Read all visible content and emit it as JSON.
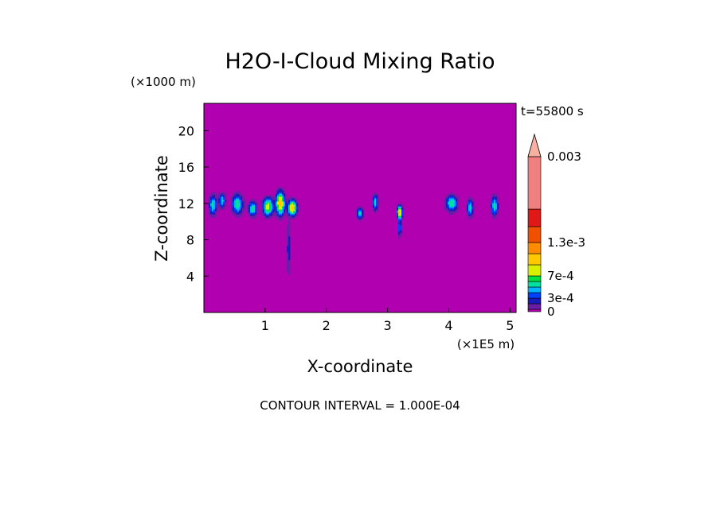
{
  "chart_data": {
    "type": "heatmap",
    "title": "H2O-I-Cloud Mixing Ratio",
    "xlabel": "X-coordinate",
    "ylabel": "Z-coordinate",
    "x_units": "(×1E5 m)",
    "y_units": "(×1000 m)",
    "time_label": "t=55800 s",
    "footnote": "CONTOUR INTERVAL = 1.000E-04",
    "xlim": [
      0,
      5.1
    ],
    "ylim": [
      0,
      23
    ],
    "x_ticks": [
      1,
      2,
      3,
      4,
      5
    ],
    "y_ticks": [
      4,
      8,
      12,
      16,
      20
    ],
    "background_color": "#b000b0",
    "colorbar": {
      "min": 0,
      "max": 0.003,
      "labels": [
        {
          "value": 0,
          "text": "0"
        },
        {
          "value": 0.0003,
          "text": "3e-4"
        },
        {
          "value": 0.0007,
          "text": "7e-4"
        },
        {
          "value": 0.0013,
          "text": "1.3e-3"
        },
        {
          "value": 0.003,
          "text": "0.003"
        }
      ],
      "levels": [
        {
          "from": 0.0,
          "to": 0.0001,
          "color": "#b000b0"
        },
        {
          "from": 0.0001,
          "to": 0.0002,
          "color": "#6a1ea8"
        },
        {
          "from": 0.0002,
          "to": 0.0003,
          "color": "#1a1ab8"
        },
        {
          "from": 0.0003,
          "to": 0.0004,
          "color": "#0040ff"
        },
        {
          "from": 0.0004,
          "to": 0.0005,
          "color": "#00b4ff"
        },
        {
          "from": 0.0005,
          "to": 0.0006,
          "color": "#00e0a0"
        },
        {
          "from": 0.0006,
          "to": 0.0007,
          "color": "#00e040"
        },
        {
          "from": 0.0007,
          "to": 0.0009,
          "color": "#d8f000"
        },
        {
          "from": 0.0009,
          "to": 0.0011,
          "color": "#ffc800"
        },
        {
          "from": 0.0011,
          "to": 0.0013,
          "color": "#ff8c00"
        },
        {
          "from": 0.0013,
          "to": 0.0016,
          "color": "#f05000"
        },
        {
          "from": 0.0016,
          "to": 0.002,
          "color": "#e01818"
        },
        {
          "from": 0.002,
          "to": 0.003,
          "color": "#f08080"
        },
        {
          "from": 0.003,
          "to": 0.0035,
          "color": "#f8b0a0"
        }
      ]
    },
    "cloud_features": [
      {
        "x": 0.15,
        "z": 11.8,
        "wx": 0.09,
        "wz": 1.6,
        "peak": 0.00055
      },
      {
        "x": 0.3,
        "z": 12.3,
        "wx": 0.08,
        "wz": 1.2,
        "peak": 0.0005
      },
      {
        "x": 0.55,
        "z": 11.9,
        "wx": 0.13,
        "wz": 1.6,
        "peak": 0.0006
      },
      {
        "x": 0.8,
        "z": 11.4,
        "wx": 0.1,
        "wz": 1.2,
        "peak": 0.0006
      },
      {
        "x": 1.05,
        "z": 11.6,
        "wx": 0.12,
        "wz": 1.4,
        "peak": 0.0008
      },
      {
        "x": 1.25,
        "z": 12.0,
        "wx": 0.1,
        "wz": 1.8,
        "peak": 0.001
      },
      {
        "x": 1.45,
        "z": 11.5,
        "wx": 0.1,
        "wz": 1.2,
        "peak": 0.001
      },
      {
        "x": 1.38,
        "z": 7.0,
        "wx": 0.025,
        "wz": 4.5,
        "peak": 0.0004
      },
      {
        "x": 2.55,
        "z": 10.9,
        "wx": 0.07,
        "wz": 1.0,
        "peak": 0.00055
      },
      {
        "x": 2.8,
        "z": 12.1,
        "wx": 0.06,
        "wz": 1.3,
        "peak": 0.00055
      },
      {
        "x": 3.2,
        "z": 11.0,
        "wx": 0.06,
        "wz": 1.0,
        "peak": 0.001
      },
      {
        "x": 3.2,
        "z": 9.3,
        "wx": 0.025,
        "wz": 1.4,
        "peak": 0.0006
      },
      {
        "x": 4.05,
        "z": 12.0,
        "wx": 0.14,
        "wz": 1.3,
        "peak": 0.0006
      },
      {
        "x": 4.35,
        "z": 11.5,
        "wx": 0.07,
        "wz": 1.4,
        "peak": 0.00055
      },
      {
        "x": 4.75,
        "z": 11.7,
        "wx": 0.08,
        "wz": 1.6,
        "peak": 0.00055
      }
    ]
  }
}
